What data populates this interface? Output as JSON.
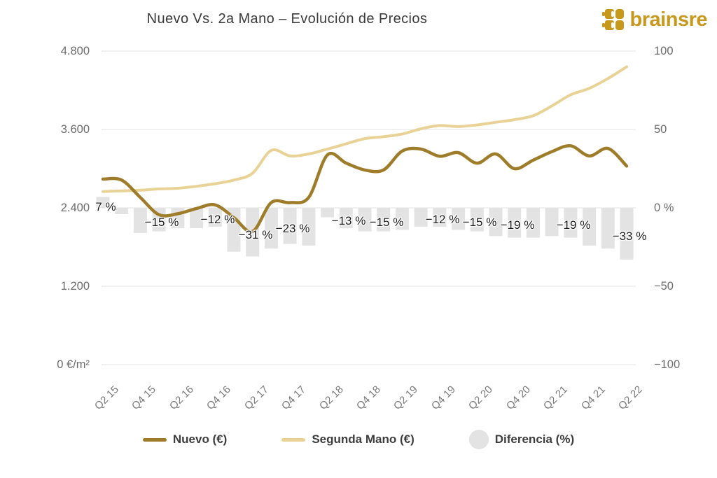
{
  "header": {
    "title": "Nuevo Vs. 2a Mano – Evolución de Precios",
    "brand": "brainsre",
    "brand_color": "#C8981C"
  },
  "chart_data": {
    "type": "combo-line-bar",
    "title": "Nuevo Vs. 2a Mano – Evolución de Precios",
    "x_axis": {
      "tick_labels": [
        "Q2 15",
        "Q4 15",
        "Q2 16",
        "Q4 16",
        "Q2 17",
        "Q4 17",
        "Q2 18",
        "Q4 18",
        "Q2 19",
        "Q4 19",
        "Q2 20",
        "Q4 20",
        "Q2 21",
        "Q4 21",
        "Q2 22"
      ],
      "label_rotation_deg": -45,
      "quarters_shown": 29
    },
    "left_axis": {
      "tick_labels": [
        "4.800",
        "3.600",
        "2.400",
        "1.200",
        "0 €/m²"
      ],
      "tick_values": [
        4800,
        3600,
        2400,
        1200,
        0
      ],
      "min": 0,
      "max": 4800,
      "unit": "€/m²"
    },
    "right_axis": {
      "tick_labels": [
        "100",
        "50",
        "0 %",
        "−50",
        "−100"
      ],
      "tick_values": [
        100,
        50,
        0,
        -50,
        -100
      ],
      "min": -100,
      "max": 100,
      "unit": "%"
    },
    "grid": true,
    "legend_position": "bottom",
    "series": [
      {
        "name": "Nuevo (€)",
        "type": "line",
        "color": "#9E7C2A",
        "values": [
          2840,
          2825,
          2560,
          2295,
          2310,
          2390,
          2445,
          2250,
          2040,
          2480,
          2480,
          2560,
          3210,
          3085,
          2980,
          2980,
          3270,
          3300,
          3190,
          3245,
          3085,
          3225,
          3000,
          3130,
          3260,
          3350,
          3195,
          3310,
          3040
        ]
      },
      {
        "name": "Segunda Mano (€)",
        "type": "line",
        "color": "#E9D296",
        "values": [
          2650,
          2660,
          2670,
          2690,
          2700,
          2730,
          2770,
          2825,
          2930,
          3280,
          3195,
          3225,
          3300,
          3380,
          3460,
          3490,
          3530,
          3610,
          3660,
          3645,
          3670,
          3710,
          3750,
          3810,
          3960,
          4130,
          4230,
          4380,
          4560
        ]
      },
      {
        "name": "Diferencia (%)",
        "type": "bar",
        "color": "#E3E3E3",
        "values": [
          7,
          -4,
          -16,
          -15,
          -13,
          -13,
          -12,
          -28,
          -31,
          -26,
          -23,
          -24,
          -6,
          -13,
          -15,
          -15,
          -14,
          -12,
          -12,
          -14,
          -15,
          -18,
          -19,
          -19,
          -18,
          -19,
          -24,
          -26,
          -33
        ]
      }
    ],
    "bar_labels": [
      {
        "quarter_index": 0,
        "text": "7 %"
      },
      {
        "quarter_index": 3,
        "text": "−15 %"
      },
      {
        "quarter_index": 6,
        "text": "−12 %"
      },
      {
        "quarter_index": 8,
        "text": "−31 %"
      },
      {
        "quarter_index": 10,
        "text": "−23 %"
      },
      {
        "quarter_index": 13,
        "text": "−13 %"
      },
      {
        "quarter_index": 15,
        "text": "−15 %"
      },
      {
        "quarter_index": 18,
        "text": "−12 %"
      },
      {
        "quarter_index": 20,
        "text": "−15 %"
      },
      {
        "quarter_index": 22,
        "text": "−19 %"
      },
      {
        "quarter_index": 25,
        "text": "−19 %"
      },
      {
        "quarter_index": 28,
        "text": "−33 %"
      }
    ]
  },
  "legend": {
    "items": [
      {
        "label": "Nuevo (€)"
      },
      {
        "label": "Segunda Mano (€)"
      },
      {
        "label": "Diferencia (%)"
      }
    ]
  }
}
